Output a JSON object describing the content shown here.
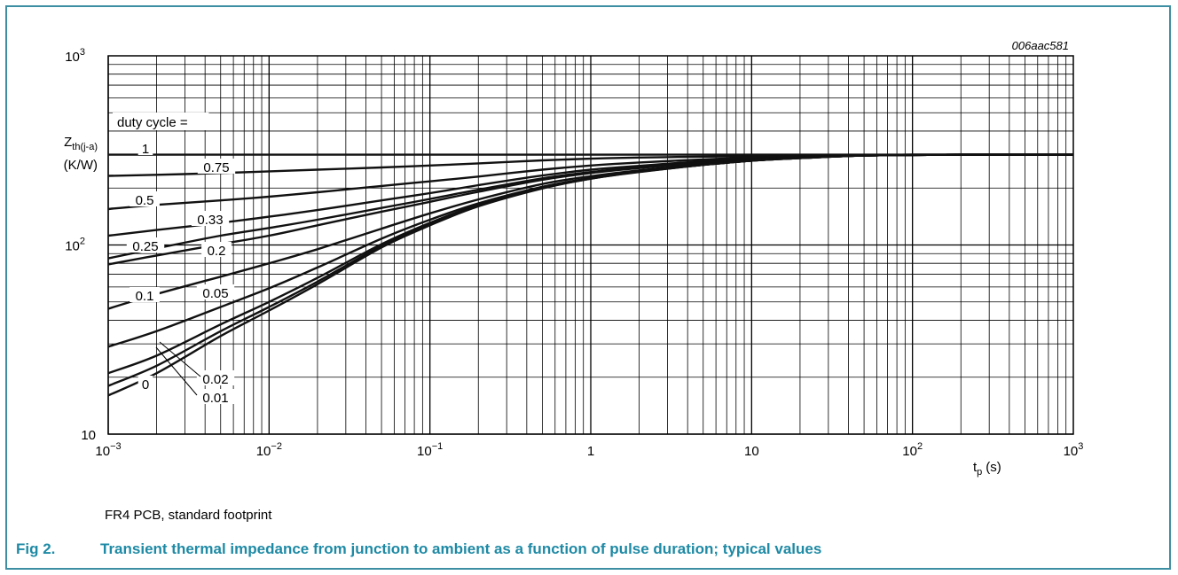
{
  "figure_code": "006aac581",
  "footnote": "FR4 PCB, standard footprint",
  "caption": {
    "number": "Fig 2.",
    "text": "Transient thermal impedance from junction to ambient as a function of pulse duration; typical values"
  },
  "colors": {
    "frame": "#3d8ea2",
    "caption": "#1e8aa5",
    "grid": "#000000",
    "curve": "#111111"
  },
  "chart_data": {
    "type": "line",
    "x_scale": "log",
    "y_scale": "log",
    "xlim": [
      0.001,
      1000
    ],
    "ylim": [
      10,
      1000
    ],
    "grid": true,
    "ylabel": {
      "main": "Z",
      "sub": "th(j-a)",
      "unit": "(K/W)"
    },
    "xlabel": {
      "main": "t",
      "sub": "p",
      "unit": "(s)"
    },
    "x_ticks": [
      {
        "base": "10",
        "exp": "−3"
      },
      {
        "base": "10",
        "exp": "−2"
      },
      {
        "base": "10",
        "exp": "−1"
      },
      {
        "base": "1",
        "exp": ""
      },
      {
        "base": "10",
        "exp": ""
      },
      {
        "base": "10",
        "exp": "2"
      },
      {
        "base": "10",
        "exp": "3"
      }
    ],
    "y_ticks": [
      {
        "base": "10",
        "exp": "3"
      },
      {
        "base": "10",
        "exp": "2"
      },
      {
        "base": "10",
        "exp": ""
      }
    ],
    "legend_title": "duty cycle =",
    "x": [
      0.001,
      0.002,
      0.005,
      0.01,
      0.02,
      0.05,
      0.1,
      0.2,
      0.5,
      1,
      2,
      5,
      10,
      20,
      50,
      100,
      200,
      500,
      1000
    ],
    "series": [
      {
        "name": "1",
        "values": [
          300,
          300,
          300,
          300,
          300,
          300,
          300,
          300,
          300,
          300,
          300,
          300,
          300,
          300,
          300,
          300,
          300,
          300,
          300
        ]
      },
      {
        "name": "0.75",
        "values": [
          232,
          235,
          240,
          245,
          250,
          257,
          263,
          270,
          280,
          286,
          290,
          293,
          295,
          297,
          299,
          300,
          300,
          300,
          300
        ]
      },
      {
        "name": "0.5",
        "values": [
          155,
          163,
          172,
          180,
          190,
          205,
          217,
          230,
          250,
          263,
          273,
          283,
          290,
          295,
          298,
          300,
          300,
          300,
          300
        ]
      },
      {
        "name": "0.33",
        "values": [
          112,
          120,
          131,
          141,
          153,
          172,
          188,
          207,
          233,
          250,
          262,
          277,
          285,
          292,
          297,
          299,
          300,
          300,
          300
        ]
      },
      {
        "name": "0.25",
        "values": [
          85,
          96,
          112,
          123,
          136,
          157,
          175,
          196,
          225,
          243,
          258,
          273,
          283,
          291,
          297,
          299,
          300,
          300,
          300
        ]
      },
      {
        "name": "0.2",
        "values": [
          79,
          88,
          101,
          112,
          127,
          150,
          169,
          191,
          221,
          240,
          255,
          272,
          282,
          290,
          297,
          299,
          300,
          300,
          300
        ]
      },
      {
        "name": "0.1",
        "values": [
          46,
          55,
          68,
          80,
          95,
          122,
          147,
          174,
          210,
          231,
          248,
          267,
          280,
          289,
          297,
          299,
          300,
          300,
          300
        ]
      },
      {
        "name": "0.05",
        "values": [
          29,
          35,
          47,
          59,
          76,
          108,
          136,
          166,
          203,
          226,
          245,
          265,
          279,
          288,
          297,
          299,
          300,
          300,
          300
        ]
      },
      {
        "name": "0.02",
        "values": [
          21,
          26,
          38,
          50,
          67,
          101,
          131,
          163,
          201,
          225,
          244,
          265,
          279,
          288,
          297,
          299,
          300,
          300,
          300
        ]
      },
      {
        "name": "0.01",
        "values": [
          18,
          23,
          35,
          47,
          64,
          99,
          129,
          161,
          200,
          224,
          244,
          265,
          279,
          288,
          297,
          299,
          300,
          300,
          300
        ]
      },
      {
        "name": "0",
        "values": [
          16,
          21,
          33,
          45,
          62,
          97,
          127,
          160,
          199,
          224,
          243,
          265,
          279,
          288,
          297,
          299,
          300,
          300,
          300
        ]
      }
    ],
    "curve_labels": [
      "1",
      "0.75",
      "0.5",
      "0.33",
      "0.25",
      "0.2",
      "0.1",
      "0.05",
      "0.02",
      "0.01",
      "0"
    ]
  }
}
